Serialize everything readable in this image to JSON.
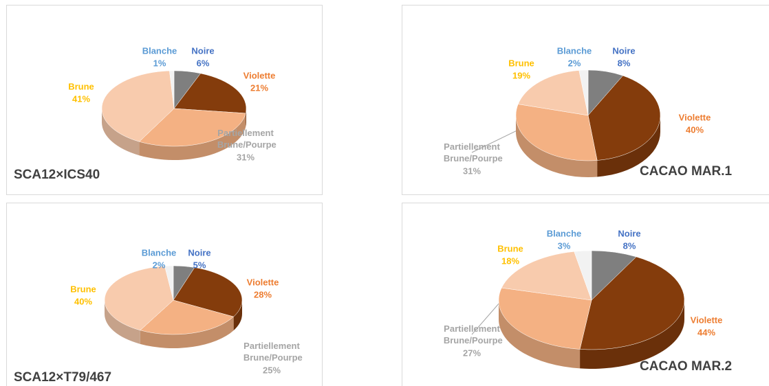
{
  "chart_data": [
    {
      "type": "pie",
      "title": "SCA12×ICS40",
      "categories": [
        "Noire",
        "Violette",
        "Partiellement Brune/Pourpe",
        "Brune",
        "Blanche"
      ],
      "values": [
        6,
        21,
        31,
        41,
        1
      ],
      "value_labels": [
        "6%",
        "21%",
        "31%",
        "41%",
        "1%"
      ],
      "colors": [
        "#7f7f7f",
        "#843c0c",
        "#f4b183",
        "#f8cbad",
        "#f2f2f2"
      ],
      "label_colors": [
        "#4472c4",
        "#ed7d31",
        "#a5a5a5",
        "#ffc000",
        "#5b9bd5"
      ]
    },
    {
      "type": "pie",
      "title": "CACAO MAR.1",
      "categories": [
        "Noire",
        "Violette",
        "Partiellement Brune/Pourpe",
        "Brune",
        "Blanche"
      ],
      "values": [
        8,
        40,
        31,
        19,
        2
      ],
      "value_labels": [
        "8%",
        "40%",
        "31%",
        "19%",
        "2%"
      ],
      "colors": [
        "#7f7f7f",
        "#843c0c",
        "#f4b183",
        "#f8cbad",
        "#f2f2f2"
      ],
      "label_colors": [
        "#4472c4",
        "#ed7d31",
        "#a5a5a5",
        "#ffc000",
        "#5b9bd5"
      ]
    },
    {
      "type": "pie",
      "title": "SCA12×T79/467",
      "categories": [
        "Noire",
        "Violette",
        "Partiellement Brune/Pourpe",
        "Brune",
        "Blanche"
      ],
      "values": [
        5,
        28,
        25,
        40,
        2
      ],
      "value_labels": [
        "5%",
        "28%",
        "25%",
        "40%",
        "2%"
      ],
      "colors": [
        "#7f7f7f",
        "#843c0c",
        "#f4b183",
        "#f8cbad",
        "#f2f2f2"
      ],
      "label_colors": [
        "#4472c4",
        "#ed7d31",
        "#a5a5a5",
        "#ffc000",
        "#5b9bd5"
      ]
    },
    {
      "type": "pie",
      "title": "CACAO MAR.2",
      "categories": [
        "Noire",
        "Violette",
        "Partiellement Brune/Pourpe",
        "Brune",
        "Blanche"
      ],
      "values": [
        8,
        44,
        27,
        18,
        3
      ],
      "value_labels": [
        "8%",
        "44%",
        "27%",
        "18%",
        "3%"
      ],
      "colors": [
        "#7f7f7f",
        "#843c0c",
        "#f4b183",
        "#f8cbad",
        "#f2f2f2"
      ],
      "label_colors": [
        "#4472c4",
        "#ed7d31",
        "#a5a5a5",
        "#ffc000",
        "#5b9bd5"
      ]
    }
  ]
}
